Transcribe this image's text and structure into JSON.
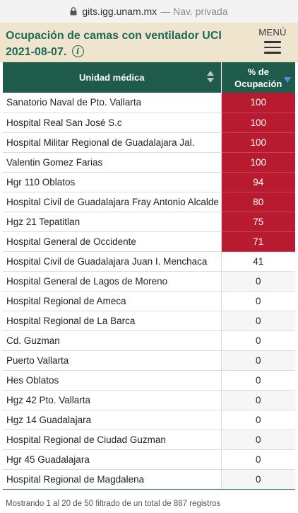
{
  "browser": {
    "url": "gits.igg.unam.mx",
    "separator": "—",
    "private_label": "Nav. privada"
  },
  "header": {
    "title_line1": "Ocupación de camas con ventilador UCI",
    "title_line2": "2021-08-07.",
    "info_glyph": "i",
    "menu_label": "MENÚ",
    "accent_color": "#1e6a56",
    "background_color": "#efe5cf"
  },
  "table": {
    "columns": [
      {
        "label": "Unidad médica",
        "sort": "both"
      },
      {
        "label_line1": "% de",
        "label_line2": "Ocupación",
        "sort": "descending"
      }
    ],
    "header_color": "#1e5b4a",
    "high_color": "#b81b30",
    "rows": [
      {
        "unit": "Sanatorio Naval de Pto. Vallarta",
        "pct": "100",
        "high": true
      },
      {
        "unit": "Hospital Real San José S.c",
        "pct": "100",
        "high": true
      },
      {
        "unit": "Hospital Militar Regional de Guadalajara Jal.",
        "pct": "100",
        "high": true
      },
      {
        "unit": "Valentin Gomez Farias",
        "pct": "100",
        "high": true
      },
      {
        "unit": "Hgr 110 Oblatos",
        "pct": "94",
        "high": true
      },
      {
        "unit": "Hospital Civil de Guadalajara Fray Antonio Alcalde",
        "pct": "80",
        "high": true
      },
      {
        "unit": "Hgz 21 Tepatitlan",
        "pct": "75",
        "high": true
      },
      {
        "unit": "Hospital General de Occidente",
        "pct": "71",
        "high": true
      },
      {
        "unit": "Hospital Civil de Guadalajara Juan I. Menchaca",
        "pct": "41",
        "high": false
      },
      {
        "unit": "Hospital General de Lagos de Moreno",
        "pct": "0",
        "high": false
      },
      {
        "unit": "Hospital Regional de Ameca",
        "pct": "0",
        "high": false
      },
      {
        "unit": "Hospital Regional de La Barca",
        "pct": "0",
        "high": false
      },
      {
        "unit": "Cd. Guzman",
        "pct": "0",
        "high": false
      },
      {
        "unit": "Puerto Vallarta",
        "pct": "0",
        "high": false
      },
      {
        "unit": "Hes Oblatos",
        "pct": "0",
        "high": false
      },
      {
        "unit": "Hgz 42 Pto. Vallarta",
        "pct": "0",
        "high": false
      },
      {
        "unit": "Hgz 14 Guadalajara",
        "pct": "0",
        "high": false
      },
      {
        "unit": "Hospital Regional de Ciudad Guzman",
        "pct": "0",
        "high": false
      },
      {
        "unit": "Hgr 45 Guadalajara",
        "pct": "0",
        "high": false
      },
      {
        "unit": "Hospital Regional de Magdalena",
        "pct": "0",
        "high": false
      }
    ]
  },
  "footer": {
    "info": "Mostrando 1 al 20 de 50 filtrado de un total de 887 registros"
  }
}
